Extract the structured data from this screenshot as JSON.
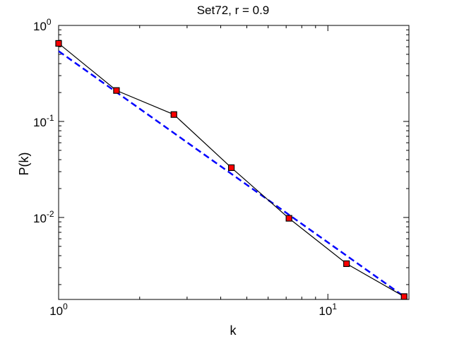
{
  "chart_data": {
    "type": "line",
    "title": "Set72, r = 0.9",
    "xlabel": "k",
    "ylabel": "P(k)",
    "xscale": "log",
    "yscale": "log",
    "xlim": [
      1,
      20
    ],
    "ylim": [
      0.0014,
      1
    ],
    "x_ticks": [
      {
        "value": 1,
        "base": "10",
        "exp": "0"
      },
      {
        "value": 10,
        "base": "10",
        "exp": "1"
      }
    ],
    "y_ticks": [
      {
        "value": 1,
        "base": "10",
        "exp": "0"
      },
      {
        "value": 0.1,
        "base": "10",
        "exp": "-1"
      },
      {
        "value": 0.01,
        "base": "10",
        "exp": "-2"
      }
    ],
    "grid": false,
    "series": [
      {
        "style": "solid-black-with-red-square-markers",
        "color": "#000000",
        "marker_color": "#ff0000",
        "x": [
          1,
          1.64,
          2.68,
          4.38,
          7.17,
          11.73,
          19.2
        ],
        "y": [
          0.65,
          0.21,
          0.118,
          0.033,
          0.0098,
          0.0033,
          0.0015
        ]
      },
      {
        "style": "dashed-blue-fit",
        "color": "#0000ff",
        "x": [
          1,
          19.2
        ],
        "y": [
          0.54,
          0.0015
        ]
      }
    ]
  }
}
